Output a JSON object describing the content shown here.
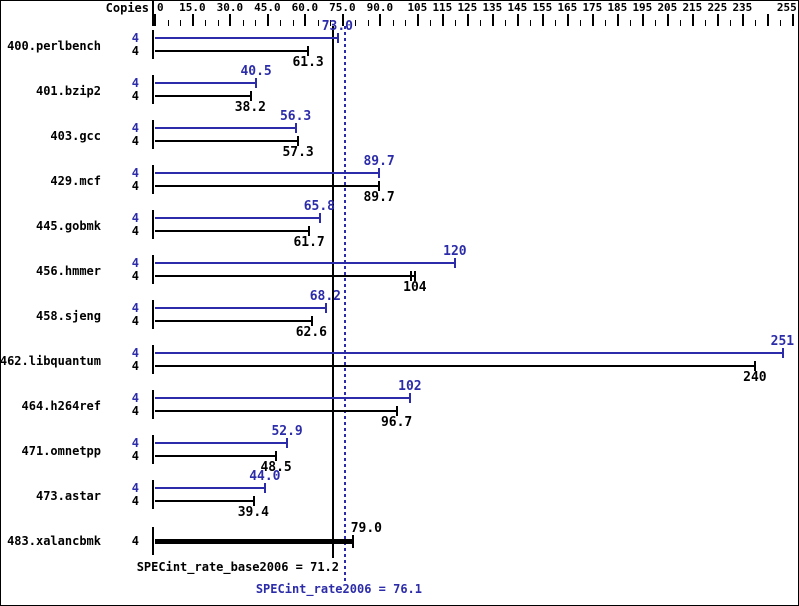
{
  "header": {
    "copies_label": "Copies"
  },
  "colors": {
    "peak_blue": "#2c2caa",
    "base_black": "#000000",
    "background": "#ffffff"
  },
  "chart_data": {
    "type": "bar",
    "orientation": "horizontal",
    "title": "",
    "xlabel": "",
    "ylabel": "Copies",
    "grid": false,
    "legend": "none",
    "axis": {
      "min": 0,
      "max": 255,
      "minor_step": 5,
      "major_ticks": [
        {
          "value": 0,
          "label": "0"
        },
        {
          "value": 15,
          "label": "15.0"
        },
        {
          "value": 30,
          "label": "30.0"
        },
        {
          "value": 45,
          "label": "45.0"
        },
        {
          "value": 60,
          "label": "60.0"
        },
        {
          "value": 75,
          "label": "75.0"
        },
        {
          "value": 90,
          "label": "90.0"
        },
        {
          "value": 105,
          "label": "105"
        },
        {
          "value": 115,
          "label": "115"
        },
        {
          "value": 125,
          "label": "125"
        },
        {
          "value": 135,
          "label": "135"
        },
        {
          "value": 145,
          "label": "145"
        },
        {
          "value": 155,
          "label": "155"
        },
        {
          "value": 165,
          "label": "165"
        },
        {
          "value": 175,
          "label": "175"
        },
        {
          "value": 185,
          "label": "185"
        },
        {
          "value": 195,
          "label": "195"
        },
        {
          "value": 205,
          "label": "205"
        },
        {
          "value": 215,
          "label": "215"
        },
        {
          "value": 225,
          "label": "225"
        },
        {
          "value": 235,
          "label": "235"
        },
        {
          "value": 245,
          "label": ""
        },
        {
          "value": 255,
          "label": "255"
        }
      ]
    },
    "series_names": [
      "SPECint_rate2006 (peak, blue)",
      "SPECint_rate_base2006 (base, black)"
    ],
    "benchmarks": [
      {
        "name": "400.perlbench",
        "copies": "4",
        "peak": {
          "value": 73.0,
          "label": "73.0"
        },
        "base": {
          "value": 61.3,
          "label": "61.3"
        }
      },
      {
        "name": "401.bzip2",
        "copies": "4",
        "peak": {
          "value": 40.5,
          "label": "40.5"
        },
        "base": {
          "value": 38.2,
          "label": "38.2"
        }
      },
      {
        "name": "403.gcc",
        "copies": "4",
        "peak": {
          "value": 56.3,
          "label": "56.3"
        },
        "base": {
          "value": 57.3,
          "label": "57.3"
        }
      },
      {
        "name": "429.mcf",
        "copies": "4",
        "peak": {
          "value": 89.7,
          "label": "89.7"
        },
        "base": {
          "value": 89.7,
          "label": "89.7"
        }
      },
      {
        "name": "445.gobmk",
        "copies": "4",
        "peak": {
          "value": 65.8,
          "label": "65.8"
        },
        "base": {
          "value": 61.7,
          "label": "61.7"
        }
      },
      {
        "name": "456.hmmer",
        "copies": "4",
        "peak": {
          "value": 120,
          "label": "120"
        },
        "base": {
          "value": 104,
          "label": "104",
          "double_cap": true
        }
      },
      {
        "name": "458.sjeng",
        "copies": "4",
        "peak": {
          "value": 68.2,
          "label": "68.2"
        },
        "base": {
          "value": 62.6,
          "label": "62.6"
        }
      },
      {
        "name": "462.libquantum",
        "copies": "4",
        "peak": {
          "value": 251,
          "label": "251"
        },
        "base": {
          "value": 240,
          "label": "240"
        }
      },
      {
        "name": "464.h264ref",
        "copies": "4",
        "peak": {
          "value": 102,
          "label": "102"
        },
        "base": {
          "value": 96.7,
          "label": "96.7"
        }
      },
      {
        "name": "471.omnetpp",
        "copies": "4",
        "peak": {
          "value": 52.9,
          "label": "52.9"
        },
        "base": {
          "value": 48.5,
          "label": "48.5"
        }
      },
      {
        "name": "473.astar",
        "copies": "4",
        "peak": {
          "value": 44.0,
          "label": "44.0"
        },
        "base": {
          "value": 39.4,
          "label": "39.4"
        }
      },
      {
        "name": "483.xalancbmk",
        "copies": "4",
        "peak": null,
        "base": {
          "value": 79.0,
          "label": "79.0"
        },
        "single_thick_bar": true
      }
    ],
    "reference_lines": [
      {
        "value": 71.2,
        "label": "SPECint_rate_base2006 = 71.2",
        "style": "solid",
        "color": "#000000"
      },
      {
        "value": 76.1,
        "label": "SPECint_rate2006 = 76.1",
        "style": "dotted",
        "color": "#2c2caa"
      }
    ]
  }
}
